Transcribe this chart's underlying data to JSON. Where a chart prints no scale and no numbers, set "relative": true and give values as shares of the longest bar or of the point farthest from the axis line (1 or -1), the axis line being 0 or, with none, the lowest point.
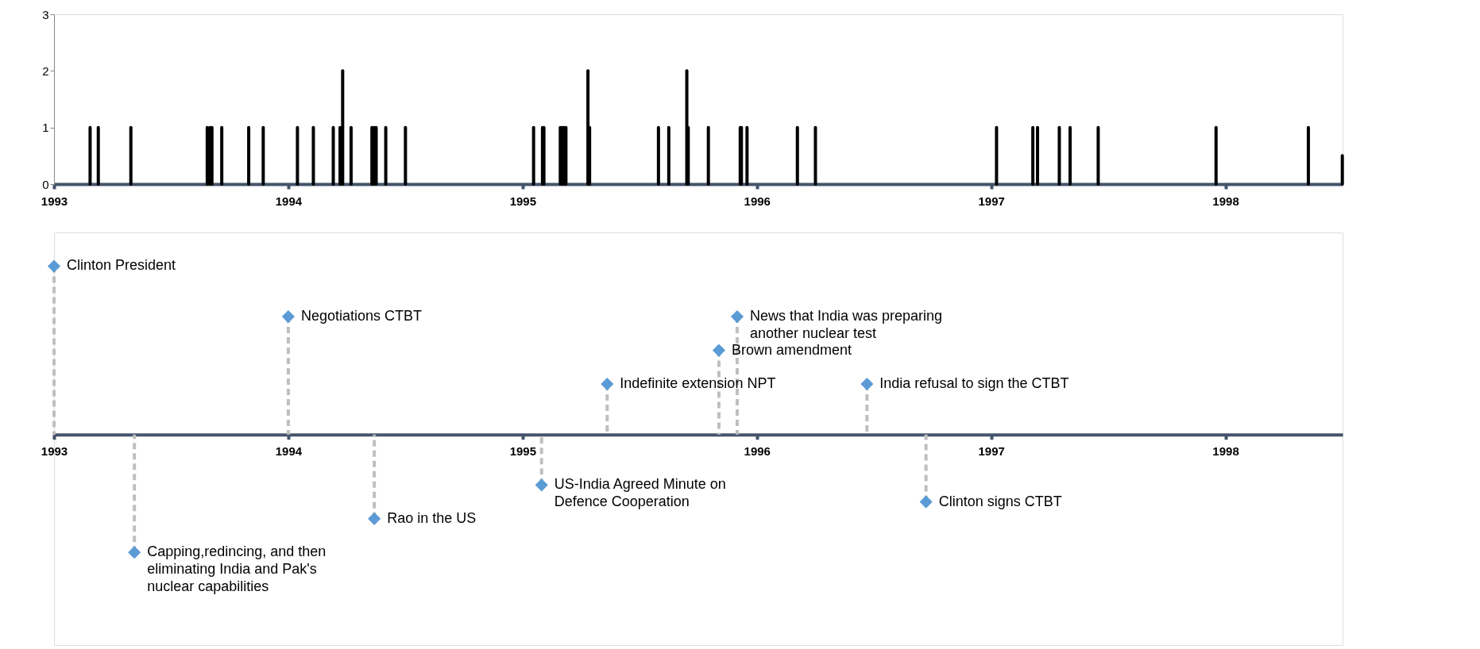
{
  "chart_data": [
    {
      "type": "bar",
      "color": "#000000",
      "x": [
        1993.154,
        1993.189,
        1993.328,
        1993.654,
        1993.665,
        1993.674,
        1993.716,
        1993.831,
        1993.893,
        1994.039,
        1994.107,
        1994.192,
        1994.221,
        1994.232,
        1994.268,
        1994.357,
        1994.365,
        1994.375,
        1994.416,
        1994.5,
        1995.047,
        1995.085,
        1995.091,
        1995.161,
        1995.169,
        1995.177,
        1995.185,
        1995.279,
        1995.286,
        1995.58,
        1995.624,
        1995.701,
        1995.707,
        1995.793,
        1995.929,
        1995.934,
        1995.958,
        1996.173,
        1996.25,
        1997.023,
        1997.178,
        1997.198,
        1997.291,
        1997.337,
        1997.457,
        1997.96,
        1998.354,
        1998.499
      ],
      "values": [
        1,
        1,
        1,
        1,
        1,
        1,
        1,
        1,
        1,
        1,
        1,
        1,
        1,
        2,
        1,
        1,
        1,
        1,
        1,
        1,
        1,
        1,
        1,
        1,
        1,
        1,
        1,
        2,
        1,
        1,
        1,
        2,
        1,
        1,
        1,
        1,
        1,
        1,
        1,
        1,
        1,
        1,
        1,
        1,
        1,
        1,
        1,
        0.5
      ],
      "xlim": [
        1993,
        1998.5
      ],
      "xticks": [
        1993,
        1994,
        1995,
        1996,
        1997,
        1998
      ],
      "ylim": [
        0,
        3
      ],
      "yticks": [
        0,
        1,
        2,
        3
      ]
    },
    {
      "type": "lollipop",
      "relative": true,
      "color": "#5b9bd5",
      "marker": "diamond",
      "line_style": "dashed",
      "tick_labels": "x",
      "x": [
        1993.0,
        1993.343,
        1994.0,
        1994.367,
        1995.081,
        1995.361,
        1995.838,
        1995.916,
        1996.47,
        1996.722
      ],
      "values": [
        1,
        -0.7,
        0.7,
        -0.5,
        -0.3,
        0.3,
        0.5,
        0.7,
        0.3,
        -0.4
      ],
      "annotations": [
        {
          "text": "Clinton President",
          "x": 1993.0,
          "y": 1
        },
        {
          "text": "Capping,redincing, and then\neliminating India and Pak's\nnuclear capabilities",
          "x": 1993.343,
          "y": -0.7
        },
        {
          "text": "Negotiations CTBT",
          "x": 1994.0,
          "y": 0.7
        },
        {
          "text": "Rao in the US",
          "x": 1994.367,
          "y": -0.5
        },
        {
          "text": "US-India Agreed Minute on\nDefence Cooperation",
          "x": 1995.081,
          "y": -0.3
        },
        {
          "text": "Indefinite extension NPT",
          "x": 1995.361,
          "y": 0.3
        },
        {
          "text": "Brown amendment",
          "x": 1995.838,
          "y": 0.5
        },
        {
          "text": "News that India was preparing\nanother nuclear test",
          "x": 1995.916,
          "y": 0.7
        },
        {
          "text": "India refusal to sign the CTBT",
          "x": 1996.47,
          "y": 0.3
        },
        {
          "text": "Clinton signs CTBT",
          "x": 1996.722,
          "y": -0.4
        }
      ],
      "xlim": [
        1993,
        1998.5
      ],
      "xticks": [
        1993,
        1994,
        1995,
        1996,
        1997,
        1998
      ]
    }
  ]
}
